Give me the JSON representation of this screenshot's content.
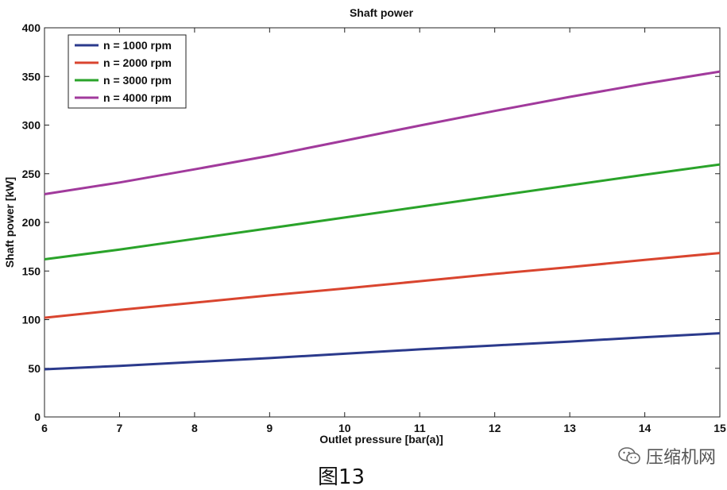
{
  "chart_data": {
    "type": "line",
    "title": "Shaft power",
    "xlabel": "Outlet pressure [bar(a)]",
    "ylabel": "Shaft power [kW]",
    "xlim": [
      6,
      15
    ],
    "ylim": [
      0,
      400
    ],
    "xticks": [
      6,
      7,
      8,
      9,
      10,
      11,
      12,
      13,
      14,
      15
    ],
    "yticks": [
      0,
      50,
      100,
      150,
      200,
      250,
      300,
      350,
      400
    ],
    "grid": false,
    "legend_position": "top-left",
    "series": [
      {
        "name": "n = 1000 rpm",
        "color": "#2b3a8c",
        "x": [
          6,
          7,
          8,
          9,
          10,
          11,
          12,
          13,
          14,
          15
        ],
        "y": [
          49,
          52.5,
          56.5,
          60.5,
          65,
          69.5,
          73.5,
          77.5,
          82,
          86
        ]
      },
      {
        "name": "n = 2000 rpm",
        "color": "#d9452f",
        "x": [
          6,
          7,
          8,
          9,
          10,
          11,
          12,
          13,
          14,
          15
        ],
        "y": [
          102,
          110,
          117.5,
          125,
          132,
          139.5,
          147,
          154,
          161.5,
          168.5
        ]
      },
      {
        "name": "n = 3000 rpm",
        "color": "#2aa32a",
        "x": [
          6,
          7,
          8,
          9,
          10,
          11,
          12,
          13,
          14,
          15
        ],
        "y": [
          162,
          172,
          183,
          194,
          205,
          216,
          227,
          238,
          249,
          259.5
        ]
      },
      {
        "name": "n = 4000 rpm",
        "color": "#a13a9c",
        "x": [
          6,
          7,
          8,
          9,
          10,
          11,
          12,
          13,
          14,
          15
        ],
        "y": [
          229,
          241,
          254.5,
          268.5,
          284,
          299.5,
          314.5,
          329,
          342.5,
          355
        ]
      }
    ]
  },
  "caption": "图13",
  "watermark": {
    "text": "压缩机网",
    "icon": "wechat-icon"
  }
}
